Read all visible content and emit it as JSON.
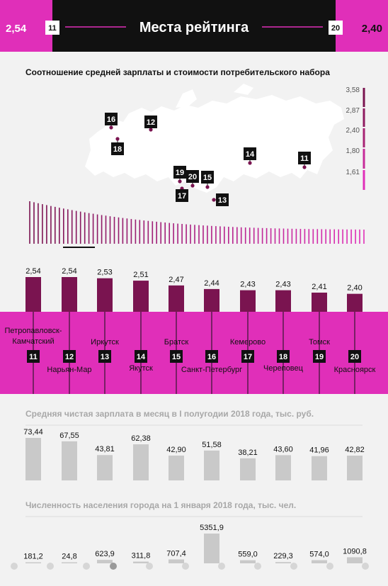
{
  "header": {
    "title": "Места рейтинга",
    "left_value": "2,54",
    "left_rank": "11",
    "right_rank": "20",
    "right_value": "2,40"
  },
  "ratio_section": {
    "title": "Соотношение средней зарплаты и стоимости потребительского набора",
    "scale_labels": [
      "3,58",
      "2,87",
      "2,40",
      "1,80",
      "1,61"
    ],
    "map_markers": [
      "16",
      "12",
      "18",
      "14",
      "11",
      "19",
      "20",
      "15",
      "17",
      "13"
    ]
  },
  "colors": {
    "magenta": "#e02fb9",
    "dark_bar": "#7a1450",
    "gray_bar": "#c9c9c9",
    "header_bg": "#111111"
  },
  "chart_data": [
    {
      "type": "bar",
      "title": "",
      "categories": [
        "Петропавловск-Камчатский",
        "Нарьян-Мар",
        "Иркутск",
        "Якутск",
        "Братск",
        "Санкт-Петербург",
        "Кемерово",
        "Череповец",
        "Томск",
        "Красноярск"
      ],
      "ranks": [
        "11",
        "12",
        "13",
        "14",
        "15",
        "16",
        "17",
        "18",
        "19",
        "20"
      ],
      "values": [
        2.54,
        2.54,
        2.53,
        2.51,
        2.47,
        2.44,
        2.43,
        2.43,
        2.41,
        2.4
      ],
      "value_labels": [
        "2,54",
        "2,54",
        "2,53",
        "2,51",
        "2,47",
        "2,44",
        "2,43",
        "2,43",
        "2,41",
        "2,40"
      ]
    },
    {
      "type": "bar",
      "title": "Средняя чистая зарплата в месяц в I полугодии 2018 года, тыс. руб.",
      "categories": [
        "Петропавловск-Камчатский",
        "Нарьян-Мар",
        "Иркутск",
        "Якутск",
        "Братск",
        "Санкт-Петербург",
        "Кемерово",
        "Череповец",
        "Томск",
        "Красноярск"
      ],
      "values": [
        73.44,
        67.55,
        43.81,
        62.38,
        42.9,
        51.58,
        38.21,
        43.6,
        41.96,
        42.82
      ],
      "value_labels": [
        "73,44",
        "67,55",
        "43,81",
        "62,38",
        "42,90",
        "51,58",
        "38,21",
        "43,60",
        "41,96",
        "42,82"
      ]
    },
    {
      "type": "bar",
      "title": "Численность населения города на 1 января 2018 года, тыс. чел.",
      "categories": [
        "Петропавловск-Камчатский",
        "Нарьян-Мар",
        "Иркутск",
        "Якутск",
        "Братск",
        "Санкт-Петербург",
        "Кемерово",
        "Череповец",
        "Томск",
        "Красноярск"
      ],
      "values": [
        181.2,
        24.8,
        623.9,
        311.8,
        707.4,
        5351.9,
        559.0,
        229.3,
        574.0,
        1090.8
      ],
      "value_labels": [
        "181,2",
        "24,8",
        "623,9",
        "311,8",
        "707,4",
        "5351,9",
        "559,0",
        "229,3",
        "574,0",
        "1090,8"
      ]
    }
  ]
}
